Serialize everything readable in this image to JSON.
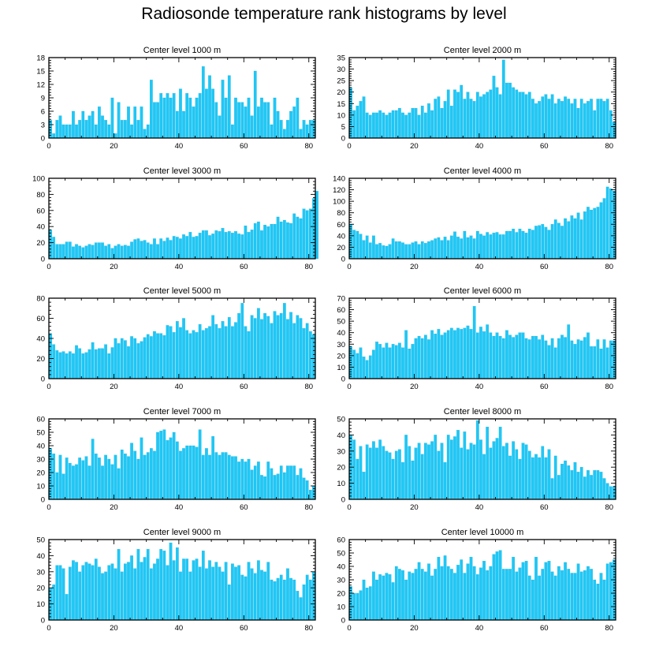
{
  "page": {
    "title": "Radiosonde temperature rank histograms by level"
  },
  "style": {
    "bar_color": "#1ec8f5",
    "bar_edge": "#0aa9e0",
    "axis_color": "#000000"
  },
  "chart_data": [
    {
      "type": "bar",
      "title": "Center level 1000 m",
      "xlabel": "",
      "ylabel": "",
      "xlim": [
        0,
        82
      ],
      "ylim": [
        0,
        18
      ],
      "xticks": [
        0,
        20,
        40,
        60,
        80
      ],
      "yticks": [
        0,
        3,
        6,
        9,
        12,
        15,
        18
      ],
      "values": [
        4,
        1,
        4,
        5,
        3,
        3,
        3,
        6,
        3,
        4,
        6,
        4,
        5,
        6,
        3,
        7,
        5,
        4,
        3,
        9,
        1,
        8,
        4,
        4,
        7,
        3,
        7,
        4,
        7,
        2,
        3,
        13,
        8,
        8,
        10,
        9,
        10,
        9,
        10,
        6,
        11,
        6,
        10,
        9,
        7,
        9,
        10,
        16,
        11,
        14,
        11,
        8,
        5,
        13,
        9,
        14,
        3,
        9,
        8,
        8,
        7,
        9,
        5,
        15,
        7,
        9,
        8,
        8,
        3,
        9,
        6,
        4,
        2,
        4,
        6,
        7,
        9,
        2,
        4,
        3,
        4,
        4
      ]
    },
    {
      "type": "bar",
      "title": "Center level 2000 m",
      "xlabel": "",
      "ylabel": "",
      "xlim": [
        0,
        82
      ],
      "ylim": [
        0,
        35
      ],
      "xticks": [
        0,
        20,
        40,
        60,
        80
      ],
      "yticks": [
        0,
        5,
        10,
        15,
        20,
        25,
        30,
        35
      ],
      "values": [
        22,
        12,
        14,
        16,
        18,
        11,
        10,
        11,
        11,
        12,
        11,
        10,
        11,
        12,
        12,
        13,
        11,
        10,
        11,
        13,
        13,
        10,
        14,
        11,
        15,
        12,
        17,
        18,
        13,
        16,
        21,
        14,
        21,
        20,
        23,
        17,
        20,
        17,
        16,
        20,
        18,
        19,
        20,
        21,
        27,
        22,
        19,
        34,
        24,
        24,
        22,
        21,
        20,
        20,
        19,
        20,
        17,
        15,
        16,
        18,
        19,
        17,
        19,
        15,
        17,
        16,
        18,
        17,
        15,
        17,
        13,
        17,
        15,
        16,
        17,
        12,
        17,
        17,
        16,
        17,
        12,
        7
      ]
    },
    {
      "type": "bar",
      "title": "Center level 3000 m",
      "xlabel": "",
      "ylabel": "",
      "xlim": [
        0,
        82
      ],
      "ylim": [
        0,
        100
      ],
      "xticks": [
        0,
        20,
        40,
        60,
        80
      ],
      "yticks": [
        0,
        20,
        40,
        60,
        80,
        100
      ],
      "values": [
        36,
        27,
        18,
        18,
        18,
        21,
        21,
        15,
        18,
        16,
        14,
        16,
        18,
        17,
        20,
        20,
        20,
        16,
        18,
        13,
        16,
        18,
        16,
        17,
        16,
        21,
        24,
        25,
        22,
        23,
        20,
        18,
        25,
        18,
        25,
        22,
        26,
        23,
        28,
        27,
        25,
        30,
        28,
        33,
        27,
        28,
        32,
        35,
        35,
        29,
        31,
        35,
        34,
        38,
        33,
        34,
        32,
        34,
        31,
        30,
        41,
        33,
        36,
        44,
        46,
        35,
        42,
        40,
        43,
        43,
        52,
        46,
        48,
        45,
        44,
        56,
        52,
        50,
        62,
        60,
        62,
        75,
        84
      ]
    },
    {
      "type": "bar",
      "title": "Center level 4000 m",
      "xlabel": "",
      "ylabel": "",
      "xlim": [
        0,
        82
      ],
      "ylim": [
        0,
        140
      ],
      "xticks": [
        0,
        20,
        40,
        60,
        80
      ],
      "yticks": [
        0,
        20,
        40,
        60,
        80,
        100,
        120,
        140
      ],
      "values": [
        60,
        50,
        48,
        43,
        32,
        40,
        28,
        40,
        25,
        27,
        23,
        22,
        25,
        35,
        30,
        30,
        28,
        25,
        25,
        28,
        30,
        25,
        30,
        27,
        30,
        32,
        35,
        37,
        32,
        38,
        32,
        40,
        47,
        38,
        35,
        48,
        37,
        40,
        35,
        48,
        43,
        40,
        46,
        42,
        45,
        46,
        42,
        42,
        48,
        48,
        52,
        46,
        52,
        48,
        45,
        52,
        50,
        57,
        58,
        60,
        55,
        50,
        60,
        68,
        62,
        57,
        70,
        65,
        75,
        70,
        80,
        68,
        82,
        90,
        85,
        88,
        90,
        98,
        105,
        125,
        122,
        118
      ]
    },
    {
      "type": "bar",
      "title": "Center level 5000 m",
      "xlabel": "",
      "ylabel": "",
      "xlim": [
        0,
        82
      ],
      "ylim": [
        0,
        80
      ],
      "xticks": [
        0,
        20,
        40,
        60,
        80
      ],
      "yticks": [
        0,
        20,
        40,
        60,
        80
      ],
      "values": [
        45,
        34,
        28,
        26,
        27,
        25,
        27,
        25,
        33,
        30,
        25,
        26,
        29,
        36,
        29,
        30,
        30,
        34,
        25,
        31,
        40,
        35,
        40,
        38,
        32,
        42,
        40,
        35,
        37,
        41,
        44,
        42,
        47,
        45,
        45,
        43,
        53,
        52,
        46,
        57,
        51,
        60,
        48,
        45,
        48,
        46,
        54,
        48,
        50,
        52,
        63,
        54,
        50,
        57,
        52,
        61,
        52,
        56,
        65,
        75,
        52,
        47,
        63,
        60,
        70,
        59,
        65,
        62,
        55,
        67,
        63,
        65,
        75,
        59,
        66,
        55,
        63,
        60,
        50,
        55,
        47,
        44
      ]
    },
    {
      "type": "bar",
      "title": "Center level 6000 m",
      "xlabel": "",
      "ylabel": "",
      "xlim": [
        0,
        82
      ],
      "ylim": [
        0,
        70
      ],
      "xticks": [
        0,
        20,
        40,
        60,
        80
      ],
      "yticks": [
        0,
        10,
        20,
        30,
        40,
        50,
        60,
        70
      ],
      "values": [
        28,
        25,
        22,
        27,
        19,
        16,
        20,
        25,
        32,
        30,
        27,
        31,
        27,
        30,
        29,
        31,
        27,
        42,
        26,
        30,
        35,
        37,
        35,
        38,
        34,
        42,
        39,
        43,
        38,
        40,
        42,
        44,
        42,
        44,
        43,
        44,
        46,
        43,
        63,
        40,
        45,
        41,
        47,
        40,
        37,
        40,
        37,
        35,
        42,
        38,
        36,
        38,
        40,
        40,
        35,
        34,
        37,
        37,
        34,
        38,
        33,
        29,
        35,
        27,
        35,
        38,
        36,
        47,
        33,
        30,
        34,
        33,
        36,
        40,
        28,
        28,
        34,
        26,
        34,
        27,
        33,
        33
      ]
    },
    {
      "type": "bar",
      "title": "Center level 7000 m",
      "xlabel": "",
      "ylabel": "",
      "xlim": [
        0,
        82
      ],
      "ylim": [
        0,
        60
      ],
      "xticks": [
        0,
        20,
        40,
        60,
        80
      ],
      "yticks": [
        0,
        10,
        20,
        30,
        40,
        50,
        60
      ],
      "values": [
        38,
        34,
        20,
        33,
        19,
        31,
        27,
        25,
        26,
        31,
        29,
        32,
        25,
        45,
        34,
        31,
        25,
        33,
        30,
        26,
        33,
        23,
        37,
        34,
        32,
        42,
        36,
        30,
        46,
        33,
        35,
        38,
        36,
        50,
        51,
        52,
        44,
        46,
        50,
        43,
        36,
        38,
        40,
        40,
        40,
        39,
        52,
        33,
        38,
        33,
        47,
        35,
        33,
        35,
        35,
        33,
        32,
        32,
        28,
        30,
        28,
        30,
        22,
        25,
        28,
        18,
        17,
        28,
        23,
        18,
        19,
        25,
        20,
        25,
        25,
        25,
        18,
        23,
        16,
        14,
        7,
        10
      ]
    },
    {
      "type": "bar",
      "title": "Center level 8000 m",
      "xlabel": "",
      "ylabel": "",
      "xlim": [
        0,
        82
      ],
      "ylim": [
        0,
        50
      ],
      "xticks": [
        0,
        20,
        40,
        60,
        80
      ],
      "yticks": [
        0,
        10,
        20,
        30,
        40,
        50
      ],
      "values": [
        40,
        37,
        25,
        33,
        17,
        34,
        32,
        36,
        32,
        37,
        33,
        30,
        29,
        25,
        30,
        31,
        23,
        40,
        33,
        24,
        32,
        35,
        28,
        35,
        34,
        36,
        40,
        30,
        35,
        23,
        40,
        37,
        39,
        43,
        32,
        42,
        31,
        35,
        34,
        49,
        37,
        28,
        45,
        32,
        36,
        38,
        45,
        33,
        35,
        27,
        36,
        31,
        25,
        35,
        34,
        30,
        26,
        28,
        26,
        33,
        26,
        31,
        13,
        27,
        15,
        22,
        24,
        21,
        18,
        23,
        17,
        20,
        14,
        18,
        15,
        18,
        18,
        17,
        13,
        10,
        8,
        8
      ]
    },
    {
      "type": "bar",
      "title": "Center level 9000 m",
      "xlabel": "",
      "ylabel": "",
      "xlim": [
        0,
        82
      ],
      "ylim": [
        0,
        50
      ],
      "xticks": [
        0,
        20,
        40,
        60,
        80
      ],
      "yticks": [
        0,
        10,
        20,
        30,
        40,
        50
      ],
      "values": [
        20,
        22,
        34,
        34,
        32,
        16,
        33,
        37,
        36,
        30,
        34,
        36,
        35,
        34,
        38,
        33,
        29,
        30,
        34,
        35,
        32,
        44,
        30,
        35,
        36,
        40,
        32,
        44,
        36,
        39,
        44,
        32,
        35,
        38,
        44,
        43,
        34,
        48,
        37,
        45,
        30,
        38,
        38,
        30,
        37,
        38,
        33,
        43,
        32,
        37,
        33,
        36,
        33,
        30,
        36,
        22,
        35,
        33,
        34,
        28,
        27,
        36,
        32,
        29,
        37,
        31,
        30,
        36,
        25,
        24,
        26,
        28,
        25,
        32,
        26,
        25,
        18,
        14,
        22,
        28,
        25,
        30
      ]
    },
    {
      "type": "bar",
      "title": "Center level 10000 m",
      "xlabel": "",
      "ylabel": "",
      "xlim": [
        0,
        82
      ],
      "ylim": [
        0,
        60
      ],
      "xticks": [
        0,
        20,
        40,
        60,
        80
      ],
      "yticks": [
        0,
        10,
        20,
        30,
        40,
        50,
        60
      ],
      "values": [
        25,
        20,
        20,
        22,
        30,
        24,
        25,
        36,
        30,
        34,
        33,
        35,
        34,
        28,
        40,
        38,
        37,
        30,
        36,
        35,
        38,
        43,
        38,
        36,
        42,
        33,
        38,
        47,
        40,
        48,
        40,
        38,
        35,
        41,
        45,
        35,
        42,
        47,
        40,
        34,
        39,
        44,
        37,
        40,
        49,
        51,
        52,
        38,
        38,
        38,
        47,
        36,
        39,
        43,
        44,
        33,
        30,
        47,
        33,
        38,
        43,
        44,
        36,
        33,
        40,
        37,
        43,
        38,
        35,
        35,
        42,
        36,
        37,
        40,
        38,
        30,
        27,
        35,
        30,
        42,
        43,
        45
      ]
    }
  ]
}
